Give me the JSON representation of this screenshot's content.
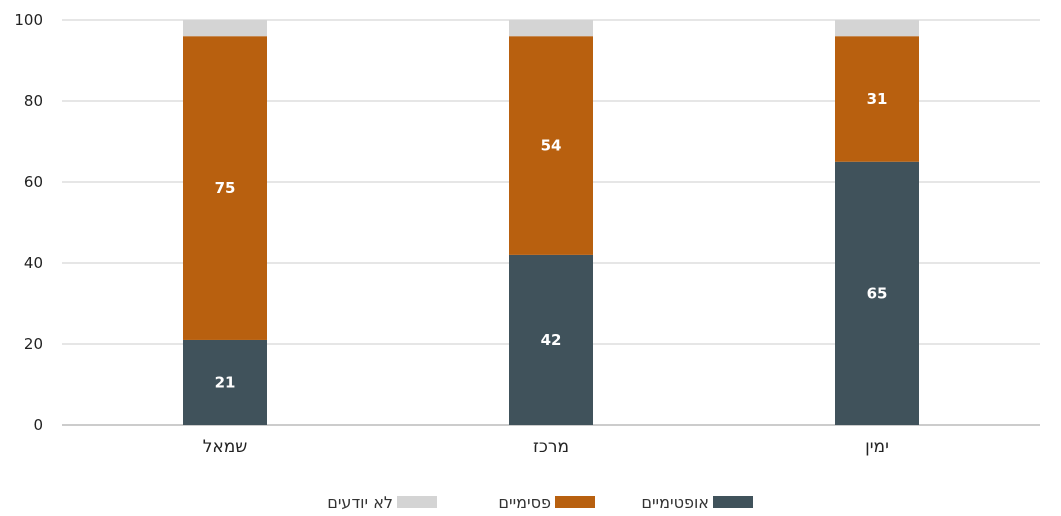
{
  "chart_data": {
    "type": "bar",
    "stacked": true,
    "categories": [
      "שמאל",
      "מרכז",
      "ימין"
    ],
    "series": [
      {
        "name": "אופטימיים",
        "values": [
          21,
          42,
          65
        ],
        "color": "#40525b"
      },
      {
        "name": "פסימיים",
        "values": [
          75,
          54,
          31
        ],
        "color": "#b8600f"
      },
      {
        "name": "לא יודעים",
        "values": [
          4,
          4,
          4
        ],
        "color": "#d4d4d4"
      }
    ],
    "data_labels": {
      "series_indices": [
        0,
        1
      ]
    },
    "ylim": [
      0,
      100
    ],
    "yticks": [
      0,
      20,
      40,
      60,
      80,
      100
    ],
    "grid": true,
    "legend_position": "bottom",
    "title": "",
    "xlabel": "",
    "ylabel": ""
  }
}
